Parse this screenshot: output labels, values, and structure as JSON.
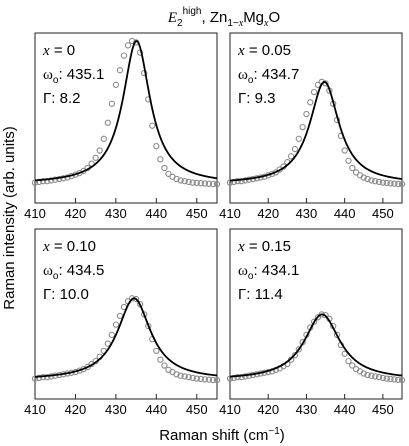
{
  "figure": {
    "title": {
      "e_main": "E",
      "e_sub": "2",
      "e_sup": "high",
      "sep": ", ",
      "zn": "Zn",
      "zn_sub_a": "1−",
      "zn_sub_b": "x",
      "mg": "Mg",
      "mg_sub": "x",
      "o": "O"
    },
    "ylabel": "Raman intensity (arb. units)",
    "xlabel": {
      "main": "Raman shift (cm",
      "sup": "−1",
      "close": ")"
    }
  },
  "chart_data": [
    {
      "type": "scatter",
      "panel": "top-left",
      "labels": {
        "x": "x = 0",
        "w_sym": "ω",
        "w_sub": "o",
        "w_val": ": 435.1",
        "g": "Γ: 8.2"
      },
      "x_var": "x",
      "x_value": "0",
      "omega_o": 435.1,
      "gamma": 8.2,
      "xlim": [
        410,
        455
      ],
      "xticks": [
        410,
        420,
        430,
        440,
        450
      ],
      "ylim": [
        0,
        1.0
      ],
      "series": [
        {
          "kind": "points",
          "x": [
            410,
            411,
            412,
            413,
            414,
            415,
            416,
            417,
            418,
            419,
            420,
            421,
            422,
            423,
            424,
            425,
            426,
            427,
            428,
            429,
            430,
            431,
            432,
            433,
            434,
            435,
            436,
            437,
            438,
            439,
            440,
            441,
            442,
            443,
            444,
            445,
            446,
            447,
            448,
            449,
            450,
            451,
            452,
            453,
            454,
            455
          ],
          "y": [
            0.03,
            0.035,
            0.04,
            0.04,
            0.045,
            0.05,
            0.055,
            0.06,
            0.065,
            0.075,
            0.085,
            0.095,
            0.11,
            0.13,
            0.16,
            0.2,
            0.25,
            0.33,
            0.44,
            0.57,
            0.7,
            0.8,
            0.9,
            0.97,
            1.0,
            0.99,
            0.92,
            0.78,
            0.6,
            0.42,
            0.28,
            0.19,
            0.13,
            0.09,
            0.07,
            0.055,
            0.045,
            0.04,
            0.035,
            0.03,
            0.028,
            0.026,
            0.024,
            0.022,
            0.02,
            0.02
          ]
        },
        {
          "kind": "fit",
          "x0": 435.1,
          "gamma": 8.2,
          "peak": 1.0
        }
      ]
    },
    {
      "type": "scatter",
      "panel": "top-right",
      "labels": {
        "x": "x = 0.05",
        "w_sym": "ω",
        "w_sub": "o",
        "w_val": ": 434.7",
        "g": "Γ: 9.3"
      },
      "x_var": "x",
      "x_value": "0.05",
      "omega_o": 434.7,
      "gamma": 9.3,
      "xlim": [
        410,
        455
      ],
      "xticks": [
        410,
        420,
        430,
        440,
        450
      ],
      "ylim": [
        0,
        1.0
      ],
      "series": [
        {
          "kind": "points",
          "x": [
            410,
            411,
            412,
            413,
            414,
            415,
            416,
            417,
            418,
            419,
            420,
            421,
            422,
            423,
            424,
            425,
            426,
            427,
            428,
            429,
            430,
            431,
            432,
            433,
            434,
            435,
            436,
            437,
            438,
            439,
            440,
            441,
            442,
            443,
            444,
            445,
            446,
            447,
            448,
            449,
            450,
            451,
            452,
            453,
            454,
            455
          ],
          "y": [
            0.03,
            0.035,
            0.04,
            0.04,
            0.045,
            0.05,
            0.055,
            0.06,
            0.065,
            0.07,
            0.08,
            0.09,
            0.1,
            0.12,
            0.14,
            0.17,
            0.21,
            0.26,
            0.33,
            0.41,
            0.5,
            0.58,
            0.65,
            0.7,
            0.72,
            0.71,
            0.66,
            0.57,
            0.46,
            0.35,
            0.25,
            0.18,
            0.13,
            0.1,
            0.08,
            0.065,
            0.055,
            0.045,
            0.04,
            0.035,
            0.03,
            0.028,
            0.025,
            0.023,
            0.02,
            0.02
          ]
        },
        {
          "kind": "fit",
          "x0": 434.7,
          "gamma": 9.3,
          "peak": 0.72
        }
      ]
    },
    {
      "type": "scatter",
      "panel": "bottom-left",
      "labels": {
        "x": "x = 0.10",
        "w_sym": "ω",
        "w_sub": "o",
        "w_val": ": 434.5",
        "g": "Γ: 10.0"
      },
      "x_var": "x",
      "x_value": "0.10",
      "omega_o": 434.5,
      "gamma": 10.0,
      "xlim": [
        410,
        455
      ],
      "xticks": [
        410,
        420,
        430,
        440,
        450
      ],
      "ylim": [
        0,
        1.0
      ],
      "series": [
        {
          "kind": "points",
          "x": [
            410,
            411,
            412,
            413,
            414,
            415,
            416,
            417,
            418,
            419,
            420,
            421,
            422,
            423,
            424,
            425,
            426,
            427,
            428,
            429,
            430,
            431,
            432,
            433,
            434,
            435,
            436,
            437,
            438,
            439,
            440,
            441,
            442,
            443,
            444,
            445,
            446,
            447,
            448,
            449,
            450,
            451,
            452,
            453,
            454,
            455
          ],
          "y": [
            0.03,
            0.035,
            0.04,
            0.04,
            0.045,
            0.05,
            0.055,
            0.06,
            0.065,
            0.07,
            0.075,
            0.085,
            0.095,
            0.11,
            0.13,
            0.15,
            0.18,
            0.22,
            0.27,
            0.33,
            0.4,
            0.46,
            0.52,
            0.56,
            0.58,
            0.575,
            0.54,
            0.47,
            0.39,
            0.3,
            0.22,
            0.16,
            0.12,
            0.09,
            0.075,
            0.06,
            0.05,
            0.045,
            0.04,
            0.035,
            0.03,
            0.028,
            0.025,
            0.023,
            0.02,
            0.02
          ]
        },
        {
          "kind": "fit",
          "x0": 434.5,
          "gamma": 10.0,
          "peak": 0.58
        }
      ]
    },
    {
      "type": "scatter",
      "panel": "bottom-right",
      "labels": {
        "x": "x = 0.15",
        "w_sym": "ω",
        "w_sub": "o",
        "w_val": ": 434.1",
        "g": "Γ: 11.4"
      },
      "x_var": "x",
      "x_value": "0.15",
      "omega_o": 434.1,
      "gamma": 11.4,
      "xlim": [
        410,
        455
      ],
      "xticks": [
        410,
        420,
        430,
        440,
        450
      ],
      "ylim": [
        0,
        1.0
      ],
      "series": [
        {
          "kind": "points",
          "x": [
            410,
            411,
            412,
            413,
            414,
            415,
            416,
            417,
            418,
            419,
            420,
            421,
            422,
            423,
            424,
            425,
            426,
            427,
            428,
            429,
            430,
            431,
            432,
            433,
            434,
            435,
            436,
            437,
            438,
            439,
            440,
            441,
            442,
            443,
            444,
            445,
            446,
            447,
            448,
            449,
            450,
            451,
            452,
            453,
            454,
            455
          ],
          "y": [
            0.03,
            0.035,
            0.04,
            0.04,
            0.045,
            0.05,
            0.055,
            0.06,
            0.065,
            0.07,
            0.075,
            0.08,
            0.09,
            0.1,
            0.115,
            0.13,
            0.16,
            0.19,
            0.23,
            0.28,
            0.33,
            0.38,
            0.42,
            0.45,
            0.47,
            0.465,
            0.44,
            0.39,
            0.33,
            0.26,
            0.2,
            0.15,
            0.12,
            0.095,
            0.08,
            0.065,
            0.055,
            0.05,
            0.045,
            0.04,
            0.035,
            0.03,
            0.028,
            0.025,
            0.022,
            0.02
          ]
        },
        {
          "kind": "fit",
          "x0": 434.1,
          "gamma": 11.4,
          "peak": 0.47
        }
      ]
    }
  ]
}
